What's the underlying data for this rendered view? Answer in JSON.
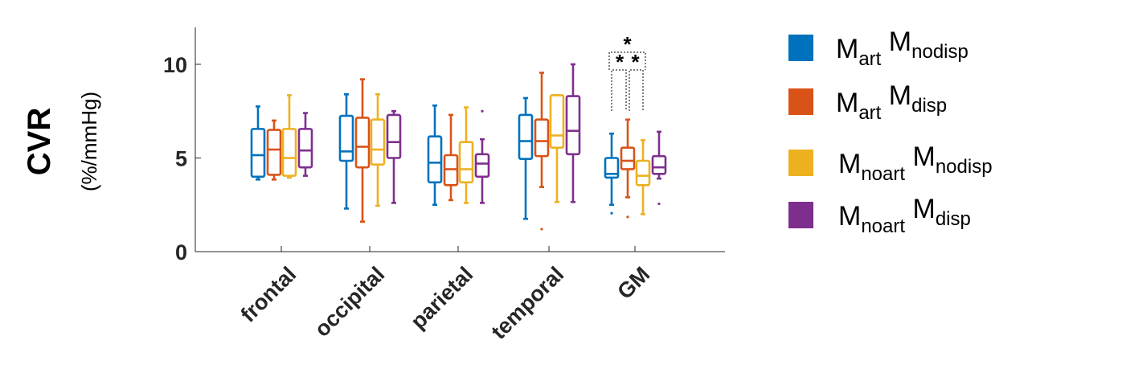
{
  "chart_data": {
    "type": "box",
    "ylabel": "CVR",
    "ylabel_unit": "(%/mmHg)",
    "ylim": [
      0,
      12
    ],
    "yticks": [
      0,
      5,
      10
    ],
    "categories": [
      "frontal",
      "occipital",
      "parietal",
      "temporal",
      "GM"
    ],
    "series": [
      {
        "name": "Mart Mnodisp",
        "legend_main": [
          "M",
          "M"
        ],
        "legend_sub": [
          "art",
          "nodisp"
        ],
        "color": "#0072BD",
        "boxes": [
          {
            "min": 3.85,
            "q1": 4.0,
            "median": 5.15,
            "q3": 6.55,
            "max": 7.75,
            "outliers": []
          },
          {
            "min": 2.3,
            "q1": 4.85,
            "median": 5.35,
            "q3": 7.25,
            "max": 8.4,
            "outliers": []
          },
          {
            "min": 2.5,
            "q1": 3.7,
            "median": 4.75,
            "q3": 6.15,
            "max": 7.8,
            "outliers": []
          },
          {
            "min": 1.75,
            "q1": 4.95,
            "median": 5.9,
            "q3": 7.3,
            "max": 8.2,
            "outliers": []
          },
          {
            "min": 2.5,
            "q1": 3.95,
            "median": 4.15,
            "q3": 5.0,
            "max": 6.3,
            "outliers": [
              2.05
            ]
          }
        ]
      },
      {
        "name": "Mart Mdisp",
        "legend_main": [
          "M",
          "M"
        ],
        "legend_sub": [
          "art",
          "disp"
        ],
        "color": "#D95319",
        "boxes": [
          {
            "min": 3.85,
            "q1": 4.1,
            "median": 5.45,
            "q3": 6.5,
            "max": 7.0,
            "outliers": []
          },
          {
            "min": 1.6,
            "q1": 4.5,
            "median": 5.6,
            "q3": 7.15,
            "max": 9.2,
            "outliers": []
          },
          {
            "min": 2.75,
            "q1": 3.55,
            "median": 4.4,
            "q3": 5.15,
            "max": 7.3,
            "outliers": []
          },
          {
            "min": 3.45,
            "q1": 5.1,
            "median": 5.9,
            "q3": 7.05,
            "max": 9.55,
            "outliers": [
              1.2
            ]
          },
          {
            "min": 2.9,
            "q1": 4.4,
            "median": 4.85,
            "q3": 5.55,
            "max": 7.05,
            "outliers": [
              1.85
            ]
          }
        ]
      },
      {
        "name": "Mnoart Mnodisp",
        "legend_main": [
          "M",
          "M"
        ],
        "legend_sub": [
          "noart",
          "nodisp"
        ],
        "color": "#EDB120",
        "boxes": [
          {
            "min": 3.95,
            "q1": 4.05,
            "median": 5.0,
            "q3": 6.55,
            "max": 8.35,
            "outliers": []
          },
          {
            "min": 2.45,
            "q1": 4.65,
            "median": 5.45,
            "q3": 7.05,
            "max": 8.4,
            "outliers": []
          },
          {
            "min": 2.6,
            "q1": 3.7,
            "median": 4.4,
            "q3": 5.85,
            "max": 7.7,
            "outliers": []
          },
          {
            "min": 2.65,
            "q1": 5.55,
            "median": 6.2,
            "q3": 8.35,
            "max": 8.35,
            "outliers": []
          },
          {
            "min": 2.0,
            "q1": 3.55,
            "median": 4.05,
            "q3": 4.85,
            "max": 5.95,
            "outliers": []
          }
        ]
      },
      {
        "name": "Mnoart Mdisp",
        "legend_main": [
          "M",
          "M"
        ],
        "legend_sub": [
          "noart",
          "disp"
        ],
        "color": "#7E2F8E",
        "boxes": [
          {
            "min": 4.05,
            "q1": 4.5,
            "median": 5.4,
            "q3": 6.55,
            "max": 7.4,
            "outliers": []
          },
          {
            "min": 2.6,
            "q1": 5.0,
            "median": 5.85,
            "q3": 7.3,
            "max": 7.5,
            "outliers": []
          },
          {
            "min": 2.6,
            "q1": 4.0,
            "median": 4.7,
            "q3": 5.2,
            "max": 6.0,
            "outliers": [
              7.5
            ]
          },
          {
            "min": 2.65,
            "q1": 5.2,
            "median": 6.45,
            "q3": 8.3,
            "max": 10.0,
            "outliers": []
          },
          {
            "min": 3.9,
            "q1": 4.15,
            "median": 4.5,
            "q3": 5.1,
            "max": 6.4,
            "outliers": [
              2.55
            ]
          }
        ]
      }
    ],
    "annotations": [
      {
        "category": "GM",
        "from_series": 0,
        "to_series": 1,
        "label": "*"
      },
      {
        "category": "GM",
        "from_series": 1,
        "to_series": 2,
        "label": "*"
      },
      {
        "category": "GM",
        "from_series": 0,
        "to_series": 2,
        "label": "*"
      }
    ],
    "legend_position": "right"
  }
}
